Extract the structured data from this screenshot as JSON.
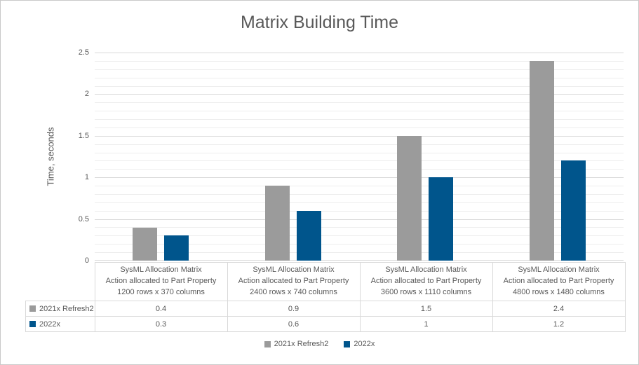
{
  "chart_data": {
    "type": "bar",
    "title": "Matrix Building Time",
    "ylabel": "Time, seconds",
    "xlabel": "",
    "ylim": [
      0,
      2.5
    ],
    "ytick_interval": 0.5,
    "yminor_interval": 0.1,
    "ytick_labels": [
      "0",
      "0.5",
      "1",
      "1.5",
      "2",
      "2.5"
    ],
    "grid": true,
    "legend_position": "bottom",
    "has_data_table": true,
    "categories": [
      {
        "lines": [
          "SysML Allocation Matrix",
          "Action allocated to Part Property",
          "1200 rows x 370 columns"
        ]
      },
      {
        "lines": [
          "SysML Allocation Matrix",
          "Action allocated to Part Property",
          "2400 rows x 740 columns"
        ]
      },
      {
        "lines": [
          "SysML Allocation Matrix",
          "Action allocated to Part Property",
          "3600 rows x 1110 columns"
        ]
      },
      {
        "lines": [
          "SysML Allocation Matrix",
          "Action allocated to Part Property",
          "4800 rows x 1480 columns"
        ]
      }
    ],
    "series": [
      {
        "name": "2021x Refresh2",
        "color": "#9b9b9b",
        "values": [
          0.4,
          0.9,
          1.5,
          2.4
        ],
        "display_values": [
          "0.4",
          "0.9",
          "1.5",
          "2.4"
        ]
      },
      {
        "name": "2022x",
        "color": "#00558c",
        "values": [
          0.3,
          0.6,
          1.0,
          1.2
        ],
        "display_values": [
          "0.3",
          "0.6",
          "1",
          "1.2"
        ]
      }
    ]
  },
  "colors": {
    "text": "#595959",
    "grid_major": "#d9d9d9",
    "grid_minor": "#ededed",
    "table_border": "#d9d9d9",
    "outer_border": "#c9c9c9",
    "series_2021x_refresh2": "#9b9b9b",
    "series_2022x": "#00558c"
  }
}
